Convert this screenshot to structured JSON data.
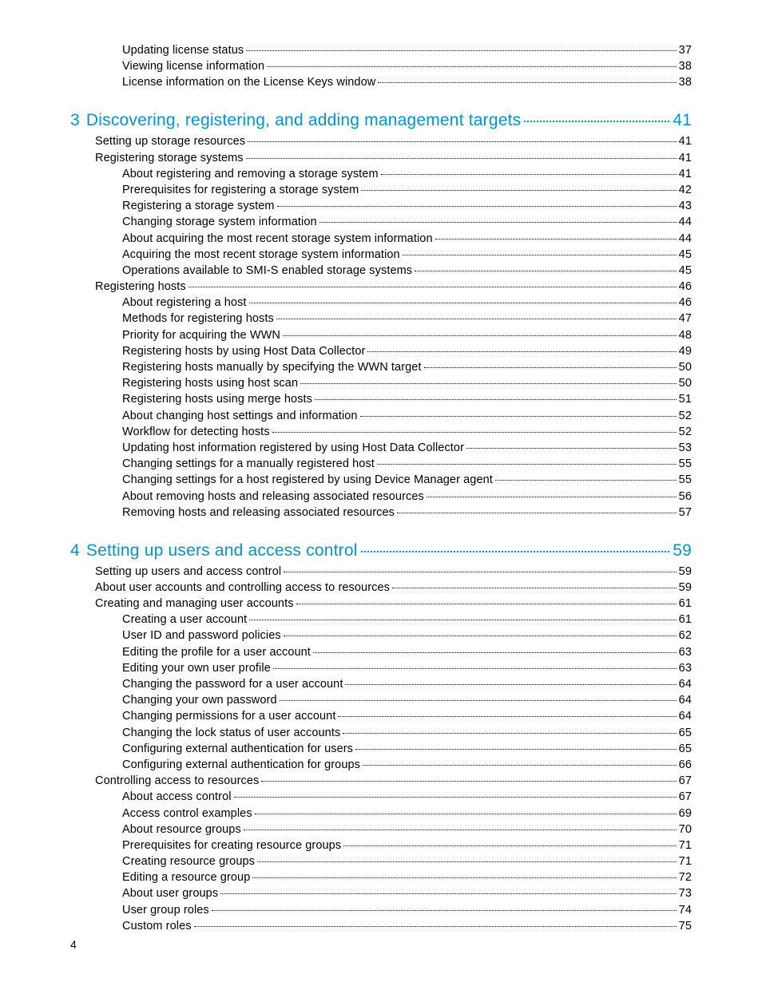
{
  "colors": {
    "chapter": "#0096d6",
    "text": "#000000",
    "background": "#ffffff"
  },
  "typography": {
    "chapter_fontsize": 21,
    "body_fontsize": 14.5,
    "font_weight": 300,
    "font_family": "Helvetica Neue"
  },
  "page_number": "4",
  "sections": [
    {
      "type": "continuation",
      "entries": [
        {
          "level": 2,
          "label": "Updating license status",
          "page": "37"
        },
        {
          "level": 2,
          "label": "Viewing license information",
          "page": "38"
        },
        {
          "level": 2,
          "label": "License information on the License Keys window",
          "page": "38"
        }
      ]
    },
    {
      "type": "chapter",
      "num": "3",
      "title": "Discovering, registering, and adding management targets",
      "page": "41",
      "entries": [
        {
          "level": 1,
          "label": "Setting up storage resources",
          "page": "41"
        },
        {
          "level": 1,
          "label": "Registering storage systems",
          "page": "41"
        },
        {
          "level": 2,
          "label": "About registering and removing a storage system",
          "page": "41"
        },
        {
          "level": 2,
          "label": "Prerequisites for registering a storage system",
          "page": "42"
        },
        {
          "level": 2,
          "label": "Registering a storage system",
          "page": "43"
        },
        {
          "level": 2,
          "label": "Changing storage system information",
          "page": "44"
        },
        {
          "level": 2,
          "label": "About acquiring the most recent storage system information",
          "page": "44"
        },
        {
          "level": 2,
          "label": "Acquiring the most recent storage system information",
          "page": "45"
        },
        {
          "level": 2,
          "label": "Operations available to SMI-S enabled storage systems",
          "page": "45"
        },
        {
          "level": 1,
          "label": "Registering hosts",
          "page": "46"
        },
        {
          "level": 2,
          "label": "About registering a host",
          "page": "46"
        },
        {
          "level": 2,
          "label": "Methods for registering hosts",
          "page": "47"
        },
        {
          "level": 2,
          "label": "Priority for acquiring the WWN",
          "page": "48"
        },
        {
          "level": 2,
          "label": "Registering hosts by using Host Data Collector",
          "page": "49"
        },
        {
          "level": 2,
          "label": "Registering hosts manually by specifying the WWN target",
          "page": "50"
        },
        {
          "level": 2,
          "label": "Registering hosts using host scan",
          "page": "50"
        },
        {
          "level": 2,
          "label": "Registering hosts using merge hosts",
          "page": "51"
        },
        {
          "level": 2,
          "label": "About changing host settings and information",
          "page": "52"
        },
        {
          "level": 2,
          "label": "Workflow for detecting hosts",
          "page": "52"
        },
        {
          "level": 2,
          "label": "Updating host information registered by using Host Data Collector",
          "page": "53"
        },
        {
          "level": 2,
          "label": "Changing settings for a manually registered host",
          "page": "55"
        },
        {
          "level": 2,
          "label": "Changing settings for a host registered by using Device Manager agent",
          "page": "55"
        },
        {
          "level": 2,
          "label": "About removing hosts and releasing associated resources",
          "page": "56"
        },
        {
          "level": 2,
          "label": "Removing hosts and releasing associated resources",
          "page": "57"
        }
      ]
    },
    {
      "type": "chapter",
      "num": "4",
      "title": "Setting up users and access control",
      "page": "59",
      "entries": [
        {
          "level": 1,
          "label": "Setting up users and access control",
          "page": "59"
        },
        {
          "level": 1,
          "label": "About user accounts and controlling access to resources",
          "page": "59"
        },
        {
          "level": 1,
          "label": "Creating and managing user accounts",
          "page": "61"
        },
        {
          "level": 2,
          "label": "Creating a user account",
          "page": "61"
        },
        {
          "level": 2,
          "label": "User ID and password policies",
          "page": "62"
        },
        {
          "level": 2,
          "label": "Editing the profile for a user account",
          "page": "63"
        },
        {
          "level": 2,
          "label": "Editing your own user profile",
          "page": "63"
        },
        {
          "level": 2,
          "label": "Changing the password for a user account",
          "page": "64"
        },
        {
          "level": 2,
          "label": "Changing your own password",
          "page": "64"
        },
        {
          "level": 2,
          "label": "Changing permissions for a user account",
          "page": "64"
        },
        {
          "level": 2,
          "label": "Changing the lock status of user accounts",
          "page": "65"
        },
        {
          "level": 2,
          "label": "Configuring external authentication for users",
          "page": "65"
        },
        {
          "level": 2,
          "label": "Configuring external authentication for groups",
          "page": "66"
        },
        {
          "level": 1,
          "label": "Controlling access to resources",
          "page": "67"
        },
        {
          "level": 2,
          "label": "About access control",
          "page": "67"
        },
        {
          "level": 2,
          "label": "Access control examples",
          "page": "69"
        },
        {
          "level": 2,
          "label": "About resource groups",
          "page": "70"
        },
        {
          "level": 2,
          "label": "Prerequisites for creating resource groups",
          "page": "71"
        },
        {
          "level": 2,
          "label": "Creating resource groups",
          "page": "71"
        },
        {
          "level": 2,
          "label": "Editing a resource group",
          "page": "72"
        },
        {
          "level": 2,
          "label": "About user groups",
          "page": "73"
        },
        {
          "level": 2,
          "label": "User group roles",
          "page": "74"
        },
        {
          "level": 2,
          "label": "Custom roles",
          "page": "75"
        }
      ]
    }
  ]
}
